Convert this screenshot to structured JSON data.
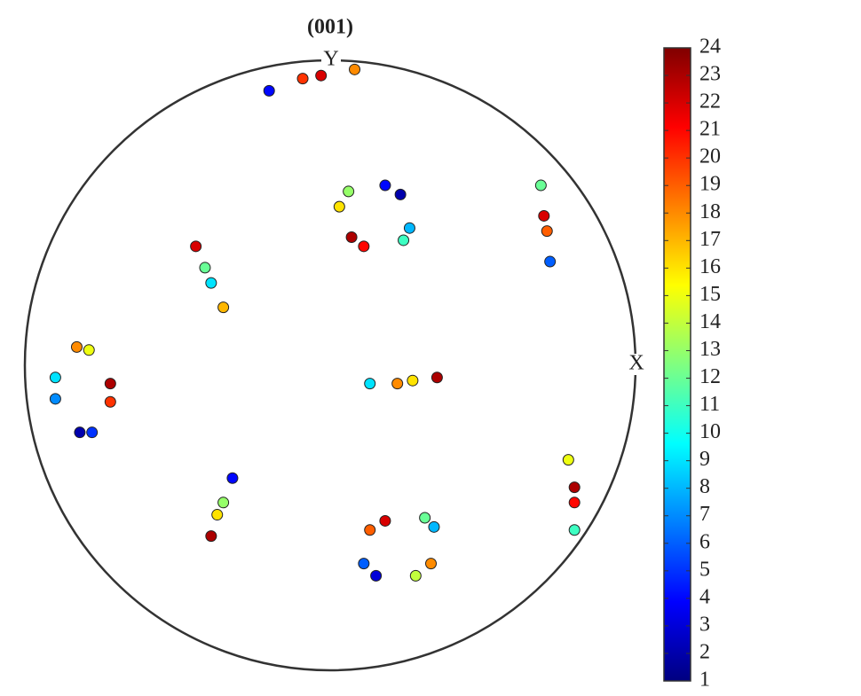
{
  "chart_data": {
    "type": "scatter",
    "title": "(001)",
    "x_label": "X",
    "y_label": "Y",
    "xlim": [
      -1,
      1
    ],
    "ylim": [
      -1,
      1
    ],
    "colormap": "jet",
    "clim": [
      1,
      24
    ],
    "cticks": [
      1,
      2,
      3,
      4,
      5,
      6,
      7,
      8,
      9,
      10,
      11,
      12,
      13,
      14,
      15,
      16,
      17,
      18,
      19,
      20,
      21,
      22,
      23,
      24
    ],
    "x": [
      -0.2,
      -0.09,
      -0.03,
      0.08,
      0.06,
      0.03,
      0.18,
      0.23,
      0.26,
      0.24,
      0.07,
      0.11,
      0.69,
      0.7,
      0.71,
      0.72,
      -0.44,
      -0.41,
      -0.39,
      -0.35,
      -0.83,
      -0.79,
      -0.9,
      -0.9,
      -0.72,
      -0.72,
      -0.82,
      -0.78,
      0.13,
      0.22,
      0.27,
      0.35,
      0.78,
      0.8,
      0.8,
      0.8,
      -0.32,
      -0.35,
      -0.37,
      -0.39,
      0.13,
      0.18,
      0.31,
      0.34,
      0.11,
      0.15,
      0.33,
      0.28
    ],
    "y": [
      0.9,
      0.94,
      0.95,
      0.97,
      0.57,
      0.52,
      0.59,
      0.56,
      0.45,
      0.41,
      0.42,
      0.39,
      0.59,
      0.49,
      0.44,
      0.34,
      0.39,
      0.32,
      0.27,
      0.19,
      0.06,
      0.05,
      -0.04,
      -0.11,
      -0.06,
      -0.12,
      -0.22,
      -0.22,
      -0.06,
      -0.06,
      -0.05,
      -0.04,
      -0.31,
      -0.4,
      -0.45,
      -0.54,
      -0.37,
      -0.45,
      -0.49,
      -0.56,
      -0.54,
      -0.51,
      -0.5,
      -0.53,
      -0.65,
      -0.69,
      -0.65,
      -0.69
    ],
    "color_values": [
      4,
      20,
      22,
      18,
      13,
      16,
      4,
      2,
      8,
      11,
      23,
      21,
      12,
      22,
      19,
      6,
      22,
      12,
      9,
      17,
      18,
      15,
      9,
      7,
      23,
      20,
      2,
      5,
      9,
      18,
      16,
      23,
      15,
      23,
      21,
      11,
      4,
      13,
      16,
      23,
      19,
      22,
      12,
      8,
      6,
      3,
      18,
      14
    ]
  }
}
